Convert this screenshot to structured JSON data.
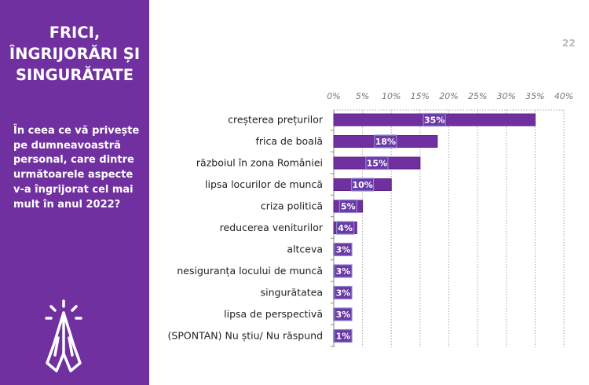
{
  "sidebar": {
    "title_lines": [
      "FRICI,",
      "ÎNGRIJORĂRI ȘI",
      "SINGURĂTATE"
    ],
    "question": "În ceea ce vă privește pe dumneavoastră personal, care dintre următoarele aspecte v-a îngrijorat cel mai mult în anul 2022?",
    "icon": "praying-hands-icon",
    "background_color": "#7030a0"
  },
  "page_number": "22",
  "chart_data": {
    "type": "bar",
    "orientation": "horizontal",
    "categories": [
      "creșterea prețurilor",
      "frica de boală",
      "războiul în zona României",
      "lipsa locurilor de muncă",
      "criza politică",
      "reducerea veniturilor",
      "altceva",
      "nesiguranța locului de muncă",
      "singurătatea",
      "lipsa de perspectivă",
      "(SPONTAN) Nu știu/ Nu răspund"
    ],
    "values": [
      35,
      18,
      15,
      10,
      5,
      4,
      3,
      3,
      3,
      3,
      1
    ],
    "data_labels": [
      "35%",
      "18%",
      "15%",
      "10%",
      "5%",
      "4%",
      "3%",
      "3%",
      "3%",
      "3%",
      "1%"
    ],
    "xlim": [
      0,
      40
    ],
    "xticks": [
      "0%",
      "5%",
      "10%",
      "15%",
      "20%",
      "25%",
      "30%",
      "35%",
      "40%"
    ],
    "xaxis_position": "top",
    "grid": "vertical dotted",
    "bar_color": "#7030a0",
    "label_box_color": "#6a3aa6"
  }
}
